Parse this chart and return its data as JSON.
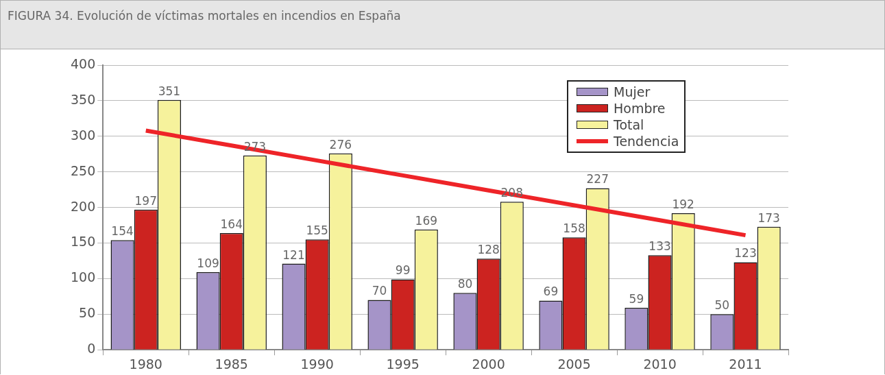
{
  "chart_data": {
    "type": "bar",
    "title": "FIGURA 34. Evolución de víctimas mortales en incendios en España",
    "categories": [
      "1980",
      "1985",
      "1990",
      "1995",
      "2000",
      "2005",
      "2010",
      "2011"
    ],
    "series": [
      {
        "name": "Mujer",
        "color": "#a594c8",
        "values": [
          154,
          109,
          121,
          70,
          80,
          69,
          59,
          50
        ],
        "value_labels": [
          "154",
          "109",
          "121",
          "70",
          "80",
          "69",
          "59",
          "50"
        ]
      },
      {
        "name": "Hombre",
        "color": "#cc2320",
        "values": [
          197,
          164,
          155,
          99,
          128,
          158,
          133,
          123
        ],
        "value_labels": [
          "197",
          "164",
          "155",
          "99",
          "128",
          "158",
          "133",
          "123"
        ]
      },
      {
        "name": "Total",
        "color": "#f6f29c",
        "values": [
          351,
          273,
          276,
          169,
          208,
          227,
          192,
          173
        ],
        "value_labels": [
          "351",
          "273",
          "276",
          "169",
          "208",
          "227",
          "192",
          "173"
        ]
      },
      {
        "name": "Tendencia",
        "type": "line",
        "color": "#ee2428",
        "values": [
          308,
          287,
          266,
          245,
          224,
          203,
          182,
          161
        ]
      }
    ],
    "ylim": [
      0,
      400
    ],
    "yticks": [
      0,
      50,
      100,
      150,
      200,
      250,
      300,
      350,
      400
    ],
    "grid": "y",
    "legend": "top right",
    "marker": "none",
    "line_style": "solid"
  }
}
